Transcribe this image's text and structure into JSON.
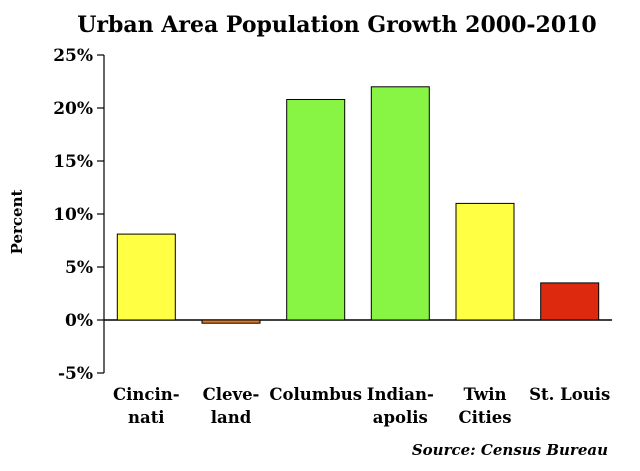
{
  "chart_data": {
    "type": "bar",
    "title": "Urban Area Population Growth 2000-2010",
    "ylabel": "Percent",
    "xlabel": "",
    "source": "Source: Census Bureau",
    "ylim": [
      -5,
      25
    ],
    "y_ticks": [
      25,
      20,
      15,
      10,
      5,
      0,
      -5
    ],
    "y_tick_labels": [
      "25%",
      "20%",
      "15%",
      "10%",
      "5%",
      "0%",
      "-5%"
    ],
    "grid": false,
    "legend": "none",
    "categories": [
      "Cincinnati",
      "Cleveland",
      "Columbus",
      "Indianapolis",
      "Twin Cities",
      "St. Louis"
    ],
    "category_label_lines": [
      [
        "Cincin-",
        "nati"
      ],
      [
        "Cleve-",
        "land"
      ],
      [
        "Columbus"
      ],
      [
        "Indian-",
        "apolis"
      ],
      [
        "Twin",
        "Cities"
      ],
      [
        "St. Louis"
      ]
    ],
    "values": [
      8.1,
      -0.3,
      20.8,
      22.0,
      11.0,
      3.5
    ],
    "bar_colors": [
      "#ffff44",
      "#e07a24",
      "#88f544",
      "#88f544",
      "#ffff44",
      "#dd2a0e"
    ]
  }
}
